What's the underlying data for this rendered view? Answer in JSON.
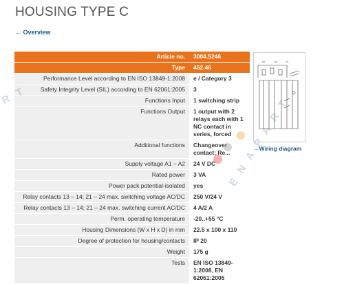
{
  "page": {
    "title": "HOUSING TYPE C",
    "back_link": "← Overview"
  },
  "header_rows": [
    {
      "label": "Article no.",
      "value": "3004.5246"
    },
    {
      "label": "Type",
      "value": "452.46"
    }
  ],
  "spec_rows": [
    {
      "label": "Performance Level according to EN ISO 13849-1:2008",
      "value": "e / Category 3"
    },
    {
      "label": "Safety Integrity Level (SIL) according to EN 62061:2005",
      "value": "3"
    },
    {
      "label": "Functions Input",
      "value": "1 switching strip"
    },
    {
      "label": "Functions Output",
      "value": "1 output with 2 relays each with 1 NC contact in series, forced"
    },
    {
      "label": "Additional functions",
      "value": "Changeover contact; Re..."
    },
    {
      "label": "Supply voltage A1 – A2",
      "value": "24 V DC"
    },
    {
      "label": "Rated power",
      "value": "3 VA"
    },
    {
      "label": "Power pack potential-isolated",
      "value": "yes"
    },
    {
      "label": "Relay contacts 13 – 14; 21 – 24 max. switching voltage AC/DC",
      "value": "250 V/24 V"
    },
    {
      "label": "Relay contacts 13 – 14; 21 – 24 max. switching current AC/DC",
      "value": "4 A/2 A"
    },
    {
      "label": "Perm. operating temperature",
      "value": "-20..+55 °C"
    },
    {
      "label": "Housing Dimensions (W x H x D) in mm",
      "value": "22.5 x 100 x 110"
    },
    {
      "label": "Degree of protection for housing/contacts",
      "value": "IP 20"
    },
    {
      "label": "Weight",
      "value": "175 g"
    },
    {
      "label": "Tests",
      "value": "EN ISO 13849-1:2008, EN 62061:2005"
    }
  ],
  "wiring": {
    "link_label": "Wiring diagram",
    "arrow": "→"
  },
  "colors": {
    "header": "#e8731c",
    "label_bg": "#efefef",
    "link": "#1a5a8a"
  }
}
